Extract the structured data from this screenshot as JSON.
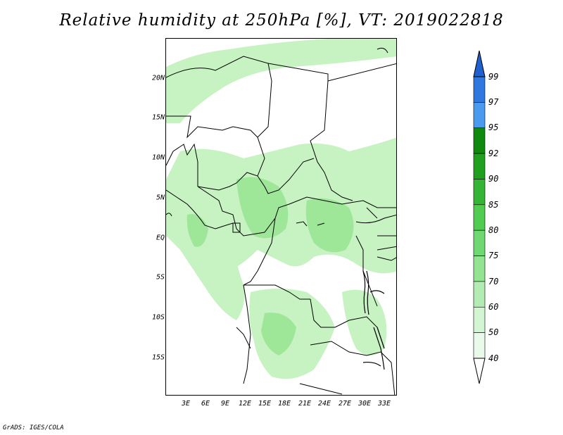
{
  "title": "Relative humidity at 250hPa [%], VT: 2019022818",
  "footer": "GrADS: IGES/COLA",
  "map": {
    "lat_labels": [
      "20N",
      "15N",
      "10N",
      "5N",
      "EQ",
      "5S",
      "10S",
      "15S"
    ],
    "lon_labels": [
      "3E",
      "6E",
      "9E",
      "12E",
      "15E",
      "18E",
      "21E",
      "24E",
      "27E",
      "30E",
      "33E"
    ]
  },
  "colorbar": {
    "levels": [
      "99",
      "97",
      "95",
      "92",
      "90",
      "85",
      "80",
      "75",
      "70",
      "60",
      "50",
      "40"
    ],
    "colors": [
      "#1f5fd0",
      "#2f78e0",
      "#4a9af0",
      "#0f8a0f",
      "#1fa01f",
      "#35b535",
      "#50cc50",
      "#70d870",
      "#92e392",
      "#b2ecb2",
      "#d2f5d2",
      "#eafaea"
    ]
  },
  "shading_color_light": "#b9efb4",
  "shading_color_mid": "#90e08a"
}
